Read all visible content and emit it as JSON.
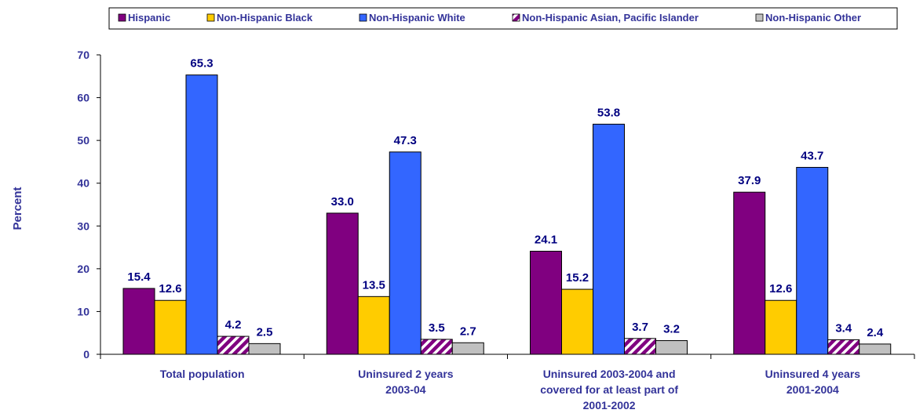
{
  "chart_data": {
    "type": "bar",
    "title": "",
    "xlabel": "",
    "ylabel": "Percent",
    "ylim": [
      0,
      70
    ],
    "yticks": [
      "0",
      "10",
      "20",
      "30",
      "40",
      "50",
      "60",
      "70"
    ],
    "grid": false,
    "legend_position": "top",
    "categories": [
      [
        "Total population"
      ],
      [
        "Uninsured 2 years",
        "2003-04"
      ],
      [
        "Uninsured 2003-2004 and",
        "covered for at least part of",
        "2001-2002"
      ],
      [
        "Uninsured 4 years",
        "2001-2004"
      ]
    ],
    "series": [
      {
        "name": "Hispanic",
        "color": "#800080",
        "values": [
          15.4,
          33.0,
          24.1,
          37.9
        ],
        "labels": [
          "15.4",
          "33.0",
          "24.1",
          "37.9"
        ]
      },
      {
        "name": "Non-Hispanic Black",
        "color": "#ffcc00",
        "values": [
          12.6,
          13.5,
          15.2,
          12.6
        ],
        "labels": [
          "12.6",
          "13.5",
          "15.2",
          "12.6"
        ]
      },
      {
        "name": "Non-Hispanic White",
        "color": "#3366ff",
        "values": [
          65.3,
          47.3,
          53.8,
          43.7
        ],
        "labels": [
          "65.3",
          "47.3",
          "53.8",
          "43.7"
        ]
      },
      {
        "name": "Non-Hispanic Asian, Pacific Islander",
        "color": "#800080",
        "pattern": "diagonal-stripes",
        "values": [
          4.2,
          3.5,
          3.7,
          3.4
        ],
        "labels": [
          "4.2",
          "3.5",
          "3.7",
          "3.4"
        ]
      },
      {
        "name": "Non-Hispanic Other",
        "color": "#c0c0c0",
        "values": [
          2.5,
          2.7,
          3.2,
          2.4
        ],
        "labels": [
          "2.5",
          "2.7",
          "3.2",
          "2.4"
        ]
      }
    ],
    "colors": {
      "axis_text": "#333399",
      "data_label": "#000080",
      "axis_line": "#000000"
    }
  }
}
